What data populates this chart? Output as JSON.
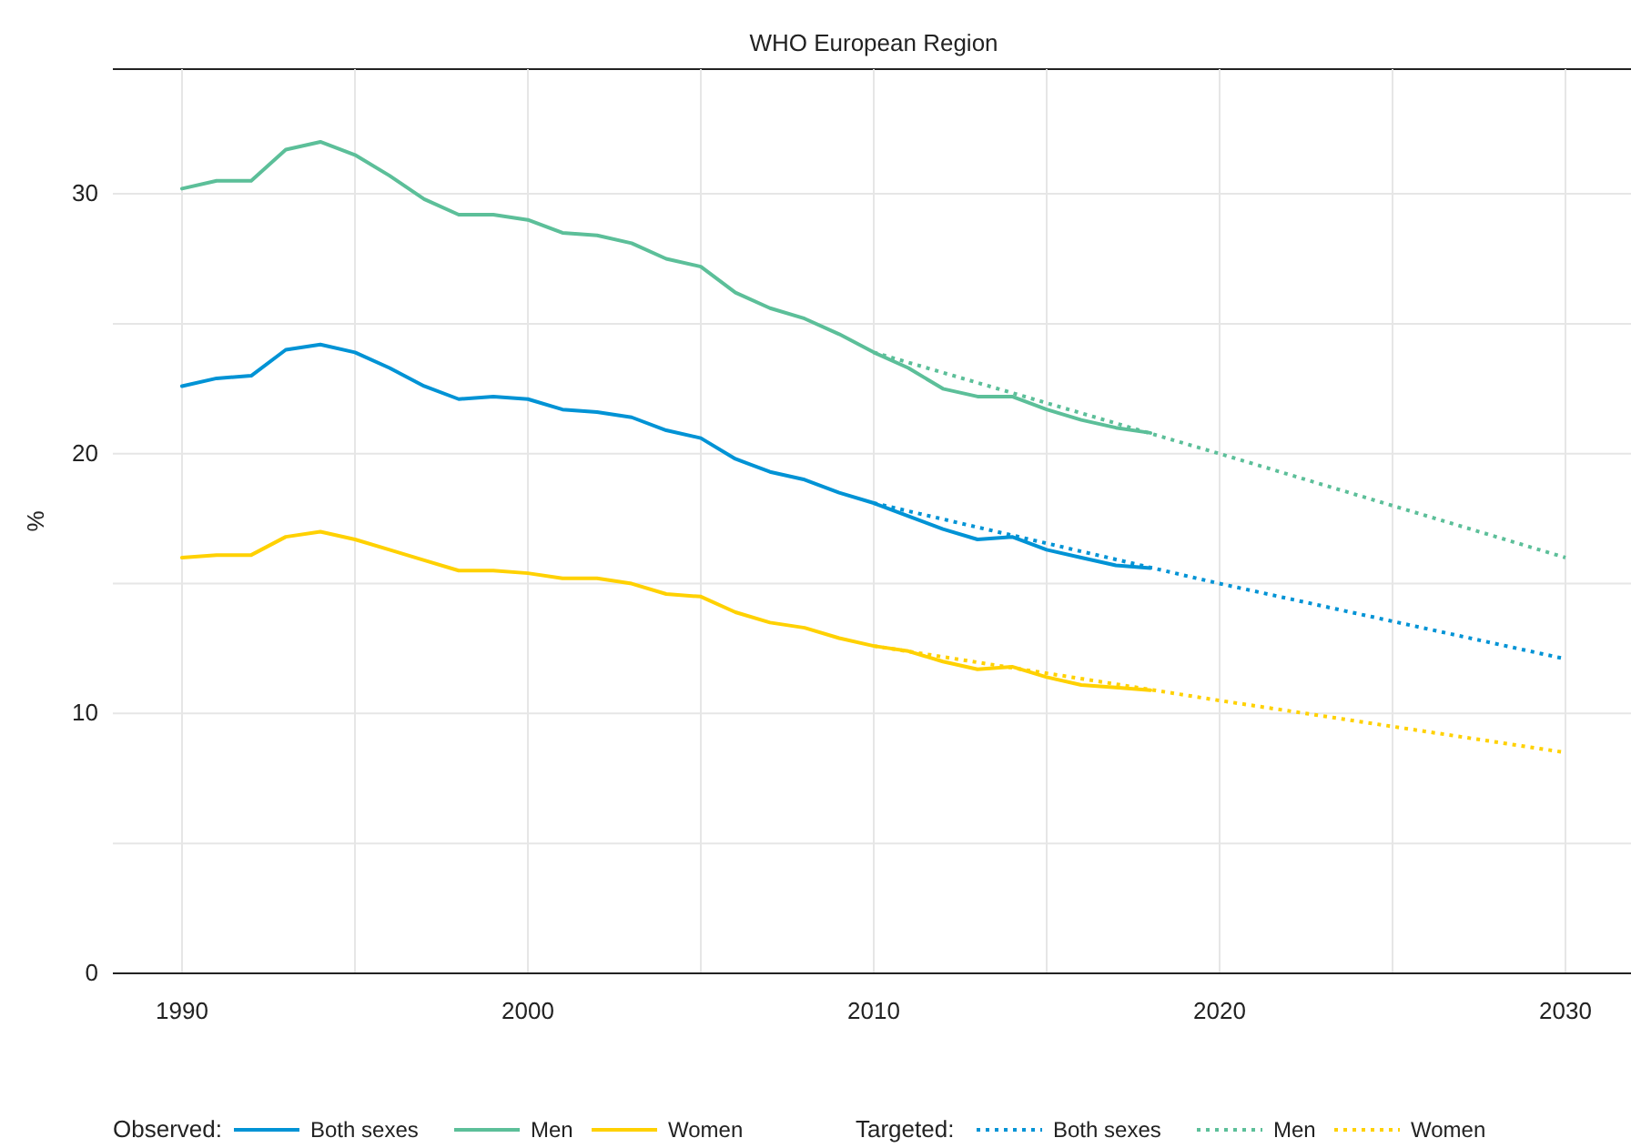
{
  "chart_data": {
    "type": "line",
    "title": "WHO European Region",
    "ylabel": "%",
    "xlim": [
      1988,
      2032
    ],
    "ylim": [
      0,
      34.8
    ],
    "xticks": [
      1990,
      {
        "value": 1995,
        "label": null
      },
      2000,
      {
        "value": 2005,
        "label": null
      },
      2010,
      {
        "value": 2015,
        "label": null
      },
      2020,
      {
        "value": 2025,
        "label": null
      },
      2030
    ],
    "yticks": [
      0,
      {
        "value": 5,
        "label": null
      },
      10,
      {
        "value": 15,
        "label": null
      },
      20,
      {
        "value": 25,
        "label": null
      },
      30
    ],
    "grid": true,
    "legend": "bottom",
    "legend_title": "Observed:",
    "annotations": [
      "Targeted:"
    ],
    "series": [
      {
        "name": "Both sexes",
        "color": "#0093d5",
        "line_style": "solid",
        "x": [
          1990,
          1991,
          1992,
          1993,
          1994,
          1995,
          1996,
          1997,
          1998,
          1999,
          2000,
          2001,
          2002,
          2003,
          2004,
          2005,
          2006,
          2007,
          2008,
          2009,
          2010,
          2011,
          2012,
          2013,
          2014,
          2015,
          2016,
          2017,
          2018
        ],
        "values": [
          22.6,
          22.9,
          23.0,
          24.0,
          24.2,
          23.9,
          23.3,
          22.6,
          22.1,
          22.2,
          22.1,
          21.7,
          21.6,
          21.4,
          20.9,
          20.6,
          19.8,
          19.3,
          19.0,
          18.5,
          18.1,
          17.6,
          17.1,
          16.7,
          16.8,
          16.3,
          16.0,
          15.7,
          15.6
        ]
      },
      {
        "name": "Men",
        "color": "#5cbf99",
        "line_style": "solid",
        "x": [
          1990,
          1991,
          1992,
          1993,
          1994,
          1995,
          1996,
          1997,
          1998,
          1999,
          2000,
          2001,
          2002,
          2003,
          2004,
          2005,
          2006,
          2007,
          2008,
          2009,
          2010,
          2011,
          2012,
          2013,
          2014,
          2015,
          2016,
          2017,
          2018
        ],
        "values": [
          30.2,
          30.5,
          30.5,
          31.7,
          32.0,
          31.5,
          30.7,
          29.8,
          29.2,
          29.2,
          29.0,
          28.5,
          28.4,
          28.1,
          27.5,
          27.2,
          26.2,
          25.6,
          25.2,
          24.6,
          23.9,
          23.3,
          22.5,
          22.2,
          22.2,
          21.7,
          21.3,
          21.0,
          20.8
        ]
      },
      {
        "name": "Women",
        "color": "#ffd100",
        "line_style": "solid",
        "x": [
          1990,
          1991,
          1992,
          1993,
          1994,
          1995,
          1996,
          1997,
          1998,
          1999,
          2000,
          2001,
          2002,
          2003,
          2004,
          2005,
          2006,
          2007,
          2008,
          2009,
          2010,
          2011,
          2012,
          2013,
          2014,
          2015,
          2016,
          2017,
          2018
        ],
        "values": [
          16.0,
          16.1,
          16.1,
          16.8,
          17.0,
          16.7,
          16.3,
          15.9,
          15.5,
          15.5,
          15.4,
          15.2,
          15.2,
          15.0,
          14.6,
          14.5,
          13.9,
          13.5,
          13.3,
          12.9,
          12.6,
          12.4,
          12.0,
          11.7,
          11.8,
          11.4,
          11.1,
          11.0,
          10.9
        ]
      },
      {
        "name": "Both sexes",
        "color": "#0093d5",
        "line_style": "dotted",
        "x": [
          2010,
          2020,
          2030
        ],
        "values": [
          18.1,
          15.0,
          12.1
        ]
      },
      {
        "name": "Men",
        "color": "#5cbf99",
        "line_style": "dotted",
        "x": [
          2010,
          2020,
          2030
        ],
        "values": [
          23.9,
          20.0,
          16.0
        ]
      },
      {
        "name": "Women",
        "color": "#ffd100",
        "line_style": "dotted",
        "x": [
          2010,
          2020,
          2030
        ],
        "values": [
          12.6,
          10.5,
          8.5
        ]
      }
    ]
  }
}
